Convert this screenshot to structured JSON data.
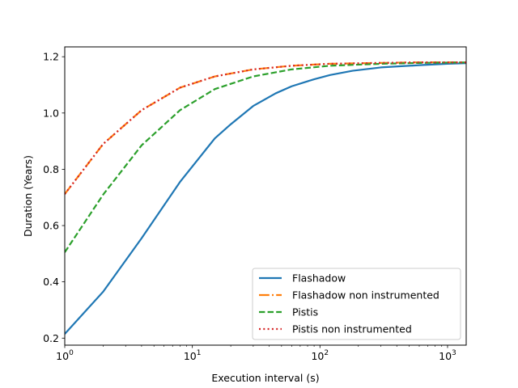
{
  "chart_data": {
    "type": "line",
    "title": "",
    "xlabel": "Execution interval (s)",
    "ylabel": "Duration (Years)",
    "xscale": "log",
    "xlim": [
      1,
      1400
    ],
    "ylim": [
      0.175,
      1.235
    ],
    "x_ticks": [
      {
        "value": 1,
        "base": "10",
        "exp": "0"
      },
      {
        "value": 10,
        "base": "10",
        "exp": "1"
      },
      {
        "value": 100,
        "base": "10",
        "exp": "2"
      },
      {
        "value": 1000,
        "base": "10",
        "exp": "3"
      }
    ],
    "y_ticks": [
      {
        "value": 0.2,
        "label": "0.2"
      },
      {
        "value": 0.4,
        "label": "0.4"
      },
      {
        "value": 0.6,
        "label": "0.6"
      },
      {
        "value": 0.8,
        "label": "0.8"
      },
      {
        "value": 1.0,
        "label": "1.0"
      },
      {
        "value": 1.2,
        "label": "1.2"
      }
    ],
    "grid": false,
    "legend_position": "bottom-right",
    "series": [
      {
        "name": "Flashadow",
        "color": "#1f77b4",
        "dash": "solid",
        "x": [
          1,
          2,
          4,
          8,
          12,
          15,
          20,
          30,
          45,
          60,
          90,
          120,
          180,
          300,
          600,
          1000,
          1400
        ],
        "y": [
          0.215,
          0.365,
          0.555,
          0.755,
          0.855,
          0.91,
          0.96,
          1.025,
          1.07,
          1.095,
          1.12,
          1.135,
          1.15,
          1.162,
          1.17,
          1.175,
          1.177
        ]
      },
      {
        "name": "Flashadow non instrumented",
        "color": "#ff7f0e",
        "dash": "dashdot",
        "x": [
          1,
          2,
          4,
          8,
          15,
          30,
          60,
          120,
          300,
          600,
          1400
        ],
        "y": [
          0.712,
          0.89,
          1.01,
          1.09,
          1.13,
          1.155,
          1.168,
          1.175,
          1.178,
          1.18,
          1.18
        ]
      },
      {
        "name": "Pistis",
        "color": "#2ca02c",
        "dash": "dashed",
        "x": [
          1,
          2,
          4,
          8,
          15,
          30,
          60,
          120,
          300,
          600,
          1400
        ],
        "y": [
          0.505,
          0.71,
          0.885,
          1.01,
          1.085,
          1.13,
          1.155,
          1.168,
          1.175,
          1.178,
          1.18
        ]
      },
      {
        "name": "Pistis non instrumented",
        "color": "#d62728",
        "dash": "dotted",
        "x": [
          1,
          2,
          4,
          8,
          15,
          30,
          60,
          120,
          300,
          600,
          1400
        ],
        "y": [
          0.712,
          0.89,
          1.01,
          1.09,
          1.13,
          1.155,
          1.168,
          1.175,
          1.178,
          1.18,
          1.18
        ]
      }
    ]
  }
}
